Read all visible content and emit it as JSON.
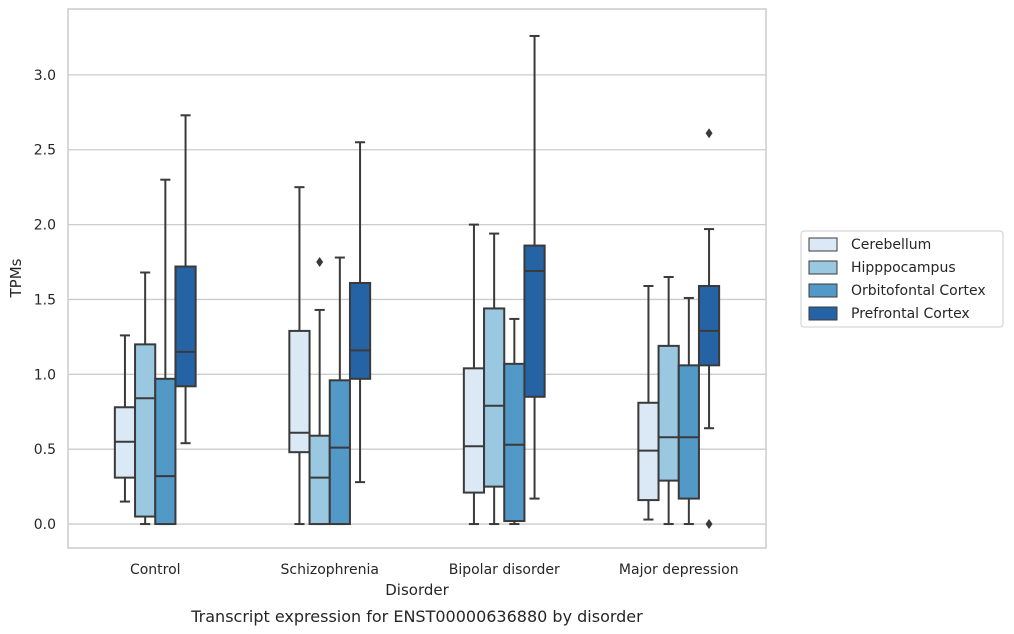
{
  "chart_data": {
    "type": "box",
    "title": "Transcript expression for ENST00000636880 by disorder",
    "xlabel": "Disorder",
    "ylabel": "TPMs",
    "ylim": [
      -0.16,
      3.44
    ],
    "yticks": [
      "0.0",
      "0.5",
      "1.0",
      "1.5",
      "2.0",
      "2.5",
      "3.0"
    ],
    "grid": true,
    "legend_position": "right",
    "categories": [
      "Control",
      "Schizophrenia",
      "Bipolar disorder",
      "Major depression"
    ],
    "series": [
      {
        "name": "Cerebellum",
        "color": "#dbe8f5",
        "boxes": [
          {
            "whislo": 0.15,
            "q1": 0.31,
            "med": 0.55,
            "q3": 0.78,
            "whishi": 1.26,
            "fliers": []
          },
          {
            "whislo": 0.0,
            "q1": 0.48,
            "med": 0.61,
            "q3": 1.29,
            "whishi": 2.25,
            "fliers": []
          },
          {
            "whislo": 0.0,
            "q1": 0.21,
            "med": 0.52,
            "q3": 1.04,
            "whishi": 2.0,
            "fliers": []
          },
          {
            "whislo": 0.03,
            "q1": 0.16,
            "med": 0.49,
            "q3": 0.81,
            "whishi": 1.59,
            "fliers": []
          }
        ]
      },
      {
        "name": "Hipppocampus",
        "color": "#9ac8e0",
        "boxes": [
          {
            "whislo": 0.0,
            "q1": 0.05,
            "med": 0.84,
            "q3": 1.2,
            "whishi": 1.68,
            "fliers": []
          },
          {
            "whislo": 0.0,
            "q1": 0.0,
            "med": 0.31,
            "q3": 0.59,
            "whishi": 1.43,
            "fliers": [
              1.75
            ]
          },
          {
            "whislo": 0.0,
            "q1": 0.25,
            "med": 0.79,
            "q3": 1.44,
            "whishi": 1.94,
            "fliers": []
          },
          {
            "whislo": 0.0,
            "q1": 0.29,
            "med": 0.58,
            "q3": 1.19,
            "whishi": 1.65,
            "fliers": []
          }
        ]
      },
      {
        "name": "Orbitofontal Cortex",
        "color": "#5299c8",
        "boxes": [
          {
            "whislo": 0.0,
            "q1": 0.0,
            "med": 0.32,
            "q3": 0.97,
            "whishi": 2.3,
            "fliers": []
          },
          {
            "whislo": 0.0,
            "q1": 0.0,
            "med": 0.51,
            "q3": 0.96,
            "whishi": 1.78,
            "fliers": []
          },
          {
            "whislo": 0.0,
            "q1": 0.02,
            "med": 0.53,
            "q3": 1.07,
            "whishi": 1.37,
            "fliers": []
          },
          {
            "whislo": 0.0,
            "q1": 0.17,
            "med": 0.58,
            "q3": 1.06,
            "whishi": 1.51,
            "fliers": []
          }
        ]
      },
      {
        "name": "Prefrontal Cortex",
        "color": "#2563a5",
        "boxes": [
          {
            "whislo": 0.54,
            "q1": 0.92,
            "med": 1.15,
            "q3": 1.72,
            "whishi": 2.73,
            "fliers": []
          },
          {
            "whislo": 0.28,
            "q1": 0.97,
            "med": 1.16,
            "q3": 1.61,
            "whishi": 2.55,
            "fliers": []
          },
          {
            "whislo": 0.17,
            "q1": 0.85,
            "med": 1.69,
            "q3": 1.86,
            "whishi": 3.26,
            "fliers": []
          },
          {
            "whislo": 0.64,
            "q1": 1.06,
            "med": 1.29,
            "q3": 1.59,
            "whishi": 1.97,
            "fliers": [
              2.61,
              0.0
            ]
          }
        ]
      }
    ]
  }
}
